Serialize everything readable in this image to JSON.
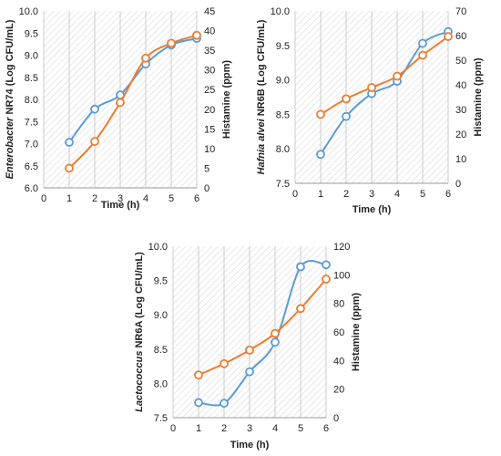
{
  "chart_data": [
    {
      "type": "line",
      "x": [
        1,
        2,
        3,
        4,
        5,
        6
      ],
      "xlabel": "Time (h)",
      "xlim": [
        0,
        6
      ],
      "xticks": [
        "0",
        "1",
        "2",
        "3",
        "4",
        "5",
        "6"
      ],
      "ylabel_italic": "Enterobacter",
      "ylabel_rest": " NR74 (Log CFU/mL)",
      "ylim": [
        6.0,
        10.0
      ],
      "yticks": [
        "6.0",
        "6.5",
        "7.0",
        "7.5",
        "8.0",
        "8.5",
        "9.0",
        "9.5",
        "10.0"
      ],
      "y2label": "Histamine (ppm)",
      "y2lim": [
        0,
        45
      ],
      "y2ticks": [
        "0",
        "5",
        "10",
        "15",
        "20",
        "25",
        "30",
        "35",
        "40",
        "45"
      ],
      "grid": "vertical",
      "series": [
        {
          "axis": "left",
          "color": "#5b9bd5",
          "values": [
            7.03,
            7.78,
            8.1,
            8.8,
            9.23,
            9.38
          ]
        },
        {
          "axis": "right",
          "color": "#ed7d31",
          "values": [
            5.0,
            11.8,
            21.7,
            33.0,
            36.8,
            38.8
          ]
        }
      ]
    },
    {
      "type": "line",
      "x": [
        1,
        2,
        3,
        4,
        5,
        6
      ],
      "xlabel": "Time (h)",
      "xlim": [
        0,
        6
      ],
      "xticks": [
        "0",
        "1",
        "2",
        "3",
        "4",
        "5",
        "6"
      ],
      "ylabel_italic": "Hafnia alvei",
      "ylabel_rest": " NR6B (Log CFU/mL)",
      "ylim": [
        7.5,
        10.0
      ],
      "yticks": [
        "7.5",
        "8.0",
        "8.5",
        "9.0",
        "9.5",
        "10.0"
      ],
      "y2label": "Histamine (ppm)",
      "y2lim": [
        0,
        70
      ],
      "y2ticks": [
        "0",
        "10",
        "20",
        "30",
        "40",
        "50",
        "60",
        "70"
      ],
      "grid": "vertical",
      "series": [
        {
          "axis": "left",
          "color": "#5b9bd5",
          "values": [
            7.92,
            8.47,
            8.8,
            8.98,
            9.53,
            9.7
          ]
        },
        {
          "axis": "right",
          "color": "#ed7d31",
          "values": [
            28.0,
            34.3,
            38.9,
            43.5,
            52.0,
            59.6
          ]
        }
      ]
    },
    {
      "type": "line",
      "x": [
        1,
        2,
        3,
        4,
        5,
        6
      ],
      "xlabel": "Time (h)",
      "xlim": [
        0,
        6
      ],
      "xticks": [
        "0",
        "1",
        "2",
        "3",
        "4",
        "5",
        "6"
      ],
      "ylabel_italic": "Lactococcus",
      "ylabel_rest": " NR6A (Log CFU/mL)",
      "ylim": [
        7.5,
        10.0
      ],
      "yticks": [
        "7.5",
        "8.0",
        "8.5",
        "9.0",
        "9.5",
        "10.0"
      ],
      "y2label": "Histamine (ppm)",
      "y2lim": [
        0,
        120
      ],
      "y2ticks": [
        "0",
        "20",
        "40",
        "60",
        "80",
        "100",
        "120"
      ],
      "grid": "vertical",
      "series": [
        {
          "axis": "left",
          "color": "#5b9bd5",
          "values": [
            7.72,
            7.71,
            8.17,
            8.6,
            9.7,
            9.73
          ]
        },
        {
          "axis": "right",
          "color": "#ed7d31",
          "values": [
            29.9,
            37.8,
            47.3,
            59.0,
            76.4,
            97.0
          ]
        }
      ]
    }
  ]
}
